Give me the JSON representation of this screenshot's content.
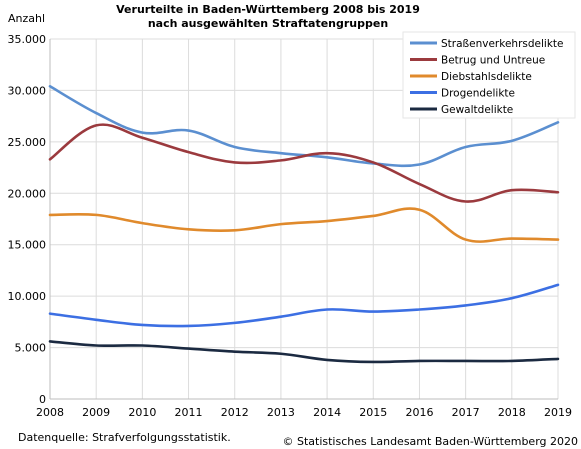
{
  "chart_data": {
    "type": "line",
    "title": "Verurteilte in Baden-Württemberg 2008 bis 2019",
    "subtitle": "nach ausgewählten Straftatengruppen",
    "ylabel": "Anzahl",
    "ylim": [
      0,
      35000
    ],
    "yticks": [
      "0",
      "5.000",
      "10.000",
      "15.000",
      "20.000",
      "25.000",
      "30.000",
      "35.000"
    ],
    "x": [
      "2008",
      "2009",
      "2010",
      "2011",
      "2012",
      "2013",
      "2014",
      "2015",
      "2016",
      "2017",
      "2018",
      "2019"
    ],
    "grid": true,
    "legend": "top-right",
    "series": [
      {
        "name": "Straßenverkehrsdelikte",
        "color": "#5b8fd0",
        "values": [
          30400,
          27800,
          25900,
          26100,
          24500,
          23900,
          23500,
          22900,
          22800,
          24500,
          25100,
          26900
        ]
      },
      {
        "name": "Betrug und Untreue",
        "color": "#9b3a3e",
        "values": [
          23300,
          26600,
          25400,
          24000,
          23000,
          23200,
          23900,
          23000,
          20900,
          19200,
          20300,
          20100
        ]
      },
      {
        "name": "Diebstahlsdelikte",
        "color": "#e08a2c",
        "values": [
          17900,
          17900,
          17100,
          16500,
          16400,
          17000,
          17300,
          17800,
          18400,
          15500,
          15600,
          15500
        ]
      },
      {
        "name": "Drogendelikte",
        "color": "#3c6fe3",
        "values": [
          8300,
          7700,
          7200,
          7100,
          7400,
          8000,
          8700,
          8500,
          8700,
          9100,
          9800,
          11100
        ]
      },
      {
        "name": "Gewaltdelikte",
        "color": "#1b2a41",
        "values": [
          5600,
          5200,
          5200,
          4900,
          4600,
          4400,
          3800,
          3600,
          3700,
          3700,
          3700,
          3900
        ]
      }
    ],
    "source": "Datenquelle: Strafverfolgungsstatistik.",
    "copyright": "© Statistisches Landesamt Baden-Württemberg 2020"
  }
}
